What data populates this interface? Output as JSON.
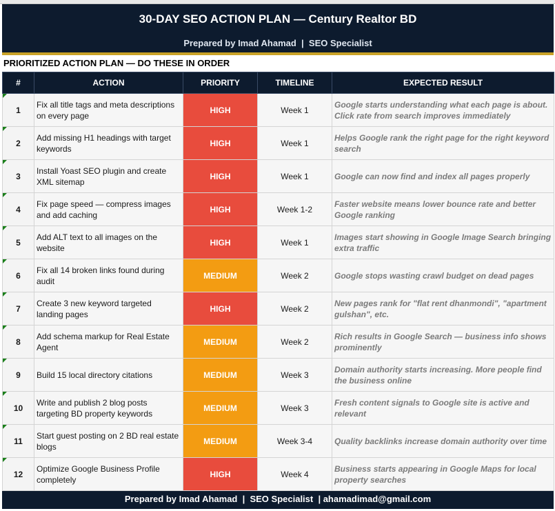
{
  "header": {
    "title": "30-DAY SEO ACTION PLAN — Century Realtor BD",
    "subtitle": "Prepared by Imad Ahamad  |  SEO Specialist"
  },
  "section_title": "PRIORITIZED ACTION PLAN — DO THESE IN ORDER",
  "columns": [
    "#",
    "ACTION",
    "PRIORITY",
    "TIMELINE",
    "EXPECTED RESULT"
  ],
  "colors": {
    "navy": "#0d1b2e",
    "gold": "#c9a227",
    "high": "#e84c3d",
    "medium": "#f39c12"
  },
  "rows": [
    {
      "num": "1",
      "action": "Fix all title tags and meta descriptions on every page",
      "priority": "HIGH",
      "timeline": "Week 1",
      "result": "Google starts understanding what each page is about. Click rate from search improves immediately"
    },
    {
      "num": "2",
      "action": "Add missing H1 headings with target keywords",
      "priority": "HIGH",
      "timeline": "Week 1",
      "result": "Helps Google rank the right page for the right keyword search"
    },
    {
      "num": "3",
      "action": "Install Yoast SEO plugin and create XML sitemap",
      "priority": "HIGH",
      "timeline": "Week 1",
      "result": "Google can now find and index all pages properly"
    },
    {
      "num": "4",
      "action": "Fix page speed — compress images and add caching",
      "priority": "HIGH",
      "timeline": "Week 1-2",
      "result": "Faster website means lower bounce rate and better Google ranking"
    },
    {
      "num": "5",
      "action": "Add ALT text to all images on the website",
      "priority": "HIGH",
      "timeline": "Week 1",
      "result": "Images start showing in Google Image Search bringing extra traffic"
    },
    {
      "num": "6",
      "action": "Fix all 14 broken links found during audit",
      "priority": "MEDIUM",
      "timeline": "Week 2",
      "result": "Google stops wasting crawl budget on dead pages"
    },
    {
      "num": "7",
      "action": "Create 3 new keyword targeted landing pages",
      "priority": "HIGH",
      "timeline": "Week 2",
      "result": "New pages rank for \"flat rent dhanmondi\", \"apartment gulshan\", etc."
    },
    {
      "num": "8",
      "action": "Add schema markup for Real Estate Agent",
      "priority": "MEDIUM",
      "timeline": "Week 2",
      "result": "Rich results in Google Search — business info shows prominently"
    },
    {
      "num": "9",
      "action": "Build 15 local directory citations",
      "priority": "MEDIUM",
      "timeline": "Week 3",
      "result": "Domain authority starts increasing. More people find the business online"
    },
    {
      "num": "10",
      "action": "Write and publish 2 blog posts targeting BD property keywords",
      "priority": "MEDIUM",
      "timeline": "Week 3",
      "result": "Fresh content signals to Google site is active and relevant"
    },
    {
      "num": "11",
      "action": "Start guest posting on 2 BD real estate blogs",
      "priority": "MEDIUM",
      "timeline": "Week 3-4",
      "result": "Quality backlinks increase domain authority over time"
    },
    {
      "num": "12",
      "action": "Optimize Google Business Profile completely",
      "priority": "HIGH",
      "timeline": "Week 4",
      "result": "Business starts appearing in Google Maps for local property searches"
    }
  ],
  "footer": "Prepared by Imad Ahamad  |  SEO Specialist  | ahamadimad@gmail.com"
}
